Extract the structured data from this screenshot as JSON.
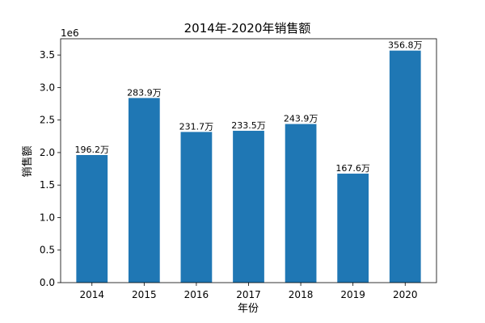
{
  "chart_data": {
    "type": "bar",
    "title": "2014年-2020年销售额",
    "xlabel": "年份",
    "ylabel": "销售额",
    "y_multiplier_label": "1e6",
    "categories": [
      "2014",
      "2015",
      "2016",
      "2017",
      "2018",
      "2019",
      "2020"
    ],
    "values": [
      1962000,
      2839000,
      2317000,
      2335000,
      2439000,
      1676000,
      3568000
    ],
    "data_labels": [
      "196.2万",
      "283.9万",
      "231.7万",
      "233.5万",
      "243.9万",
      "167.6万",
      "356.8万"
    ],
    "ylim": [
      0,
      3750000
    ],
    "yticks": [
      0,
      500000,
      1000000,
      1500000,
      2000000,
      2500000,
      3000000,
      3500000
    ],
    "ytick_labels": [
      "0.0",
      "0.5",
      "1.0",
      "1.5",
      "2.0",
      "2.5",
      "3.0",
      "3.5"
    ],
    "bar_color": "#1f77b4",
    "grid": false,
    "legend": null
  }
}
